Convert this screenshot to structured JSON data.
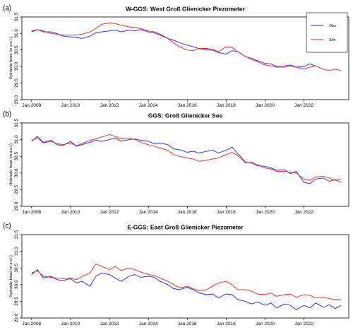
{
  "chart_data": [
    {
      "type": "line",
      "panel_label": "(a)",
      "title": "W-GGS: West Groß Glienicker Piezometer",
      "ylabel": "Hydraulic head (m a.s.l.)",
      "xlabel": "",
      "x_ticks": [
        "Jan 2008",
        "Jan 2010",
        "Jan 2012",
        "Jan 2014",
        "Jan 2016",
        "Jan 2018",
        "Jan 2020",
        "Jan 2022"
      ],
      "xlim": [
        2007.5,
        2024.3
      ],
      "y_ticks": [
        "29.0",
        "29.5",
        "30.0",
        "30.5",
        "31.0",
        "31.5"
      ],
      "ylim": [
        29.0,
        31.5
      ],
      "legend": {
        "placement": "top-right",
        "entries": [
          "Obs",
          "Sim"
        ]
      },
      "series": [
        {
          "name": "Obs",
          "color": "#1f1fe6",
          "x": [
            2008.0,
            2008.3,
            2008.6,
            2009.0,
            2009.3,
            2009.6,
            2010.0,
            2010.3,
            2010.6,
            2011.0,
            2011.3,
            2011.6,
            2012.0,
            2012.3,
            2012.6,
            2013.0,
            2013.3,
            2013.6,
            2014.0,
            2014.3,
            2014.6,
            2015.0,
            2015.3,
            2015.6,
            2016.0,
            2016.3,
            2016.6,
            2017.0,
            2017.3,
            2017.6,
            2018.0,
            2018.3,
            2018.6,
            2019.0,
            2019.3,
            2019.6,
            2020.0,
            2020.3,
            2020.6,
            2021.0,
            2021.3,
            2021.6,
            2022.0,
            2022.3,
            2022.6
          ],
          "y": [
            31.05,
            31.12,
            31.05,
            31.05,
            31.0,
            30.92,
            30.9,
            30.88,
            30.85,
            30.92,
            31.02,
            31.05,
            31.08,
            31.1,
            31.05,
            31.1,
            31.08,
            31.12,
            31.05,
            31.02,
            30.95,
            30.85,
            30.8,
            30.72,
            30.65,
            30.6,
            30.55,
            30.5,
            30.5,
            30.42,
            30.38,
            30.48,
            30.45,
            30.3,
            30.25,
            30.18,
            30.1,
            30.08,
            30.0,
            30.02,
            30.05,
            29.98,
            30.0,
            30.08,
            30.02
          ]
        },
        {
          "name": "Sim",
          "color": "#e61f1f",
          "x": [
            2008.0,
            2008.3,
            2008.6,
            2009.0,
            2009.3,
            2009.6,
            2010.0,
            2010.3,
            2010.6,
            2011.0,
            2011.3,
            2011.6,
            2012.0,
            2012.3,
            2012.6,
            2013.0,
            2013.3,
            2013.6,
            2014.0,
            2014.3,
            2014.6,
            2015.0,
            2015.3,
            2015.6,
            2016.0,
            2016.3,
            2016.6,
            2017.0,
            2017.3,
            2017.6,
            2018.0,
            2018.3,
            2018.6,
            2019.0,
            2019.3,
            2019.6,
            2020.0,
            2020.3,
            2020.6,
            2021.0,
            2021.3,
            2021.6,
            2022.0,
            2022.3,
            2022.6,
            2023.0,
            2023.3,
            2023.6,
            2023.9
          ],
          "y": [
            31.08,
            31.12,
            31.08,
            31.0,
            30.98,
            30.95,
            30.95,
            30.95,
            30.98,
            31.05,
            31.15,
            31.28,
            31.32,
            31.3,
            31.25,
            31.2,
            31.18,
            31.15,
            31.08,
            31.05,
            30.98,
            30.85,
            30.72,
            30.6,
            30.5,
            30.48,
            30.55,
            30.55,
            30.52,
            30.45,
            30.6,
            30.58,
            30.45,
            30.3,
            30.22,
            30.15,
            30.05,
            30.02,
            29.98,
            29.98,
            30.02,
            29.98,
            29.92,
            29.98,
            30.02,
            29.92,
            29.88,
            29.92,
            29.88
          ]
        }
      ]
    },
    {
      "type": "line",
      "panel_label": "(b)",
      "title": "GGS: Groß Glienicker See",
      "ylabel": "Hydraulic head (m a.s.l.)",
      "xlabel": "",
      "x_ticks": [
        "Jan 2008",
        "Jan 2010",
        "Jan 2012",
        "Jan 2014",
        "Jan 2016",
        "Jan 2018",
        "Jan 2020",
        "Jan 2022"
      ],
      "xlim": [
        2007.5,
        2024.3
      ],
      "y_ticks": [
        "29.0",
        "29.5",
        "30.0",
        "30.5",
        "31.0",
        "31.5"
      ],
      "ylim": [
        29.0,
        31.5
      ],
      "series": [
        {
          "name": "Obs",
          "color": "#1f1fe6",
          "x": [
            2008.0,
            2008.3,
            2008.6,
            2009.0,
            2009.3,
            2009.6,
            2010.0,
            2010.3,
            2010.6,
            2011.0,
            2011.3,
            2011.6,
            2012.0,
            2012.3,
            2012.6,
            2013.0,
            2013.3,
            2013.6,
            2014.0,
            2014.3,
            2014.6,
            2015.0,
            2015.3,
            2015.6,
            2016.0,
            2016.3,
            2016.6,
            2017.0,
            2017.3,
            2017.6,
            2018.0,
            2018.3,
            2018.6,
            2019.0,
            2019.3,
            2019.6,
            2020.0,
            2020.3,
            2020.6,
            2021.0,
            2021.3,
            2021.6,
            2022.0,
            2022.3,
            2022.6,
            2023.0,
            2023.3,
            2023.6,
            2023.9
          ],
          "y": [
            30.95,
            31.1,
            30.92,
            30.98,
            30.85,
            30.82,
            30.95,
            30.8,
            30.85,
            30.92,
            30.98,
            30.95,
            31.0,
            31.05,
            30.95,
            31.0,
            31.02,
            30.98,
            30.95,
            30.88,
            30.9,
            30.85,
            30.72,
            30.7,
            30.62,
            30.65,
            30.6,
            30.65,
            30.68,
            30.6,
            30.68,
            30.78,
            30.58,
            30.32,
            30.3,
            30.22,
            30.2,
            30.15,
            30.08,
            30.1,
            29.98,
            30.05,
            29.72,
            29.68,
            29.82,
            29.85,
            29.75,
            29.8,
            29.72
          ]
        },
        {
          "name": "Sim",
          "color": "#e61f1f",
          "x": [
            2008.0,
            2008.3,
            2008.6,
            2009.0,
            2009.3,
            2009.6,
            2010.0,
            2010.3,
            2010.6,
            2011.0,
            2011.3,
            2011.6,
            2012.0,
            2012.3,
            2012.6,
            2013.0,
            2013.3,
            2013.6,
            2014.0,
            2014.3,
            2014.6,
            2015.0,
            2015.3,
            2015.6,
            2016.0,
            2016.3,
            2016.6,
            2017.0,
            2017.3,
            2017.6,
            2018.0,
            2018.3,
            2018.6,
            2019.0,
            2019.3,
            2019.6,
            2020.0,
            2020.3,
            2020.6,
            2021.0,
            2021.3,
            2021.6,
            2022.0,
            2022.3,
            2022.6,
            2023.0,
            2023.3,
            2023.6,
            2023.9
          ],
          "y": [
            30.98,
            31.05,
            30.9,
            30.95,
            30.88,
            30.85,
            30.9,
            30.82,
            30.88,
            30.98,
            31.02,
            31.08,
            31.15,
            31.1,
            31.02,
            31.05,
            31.0,
            30.92,
            30.85,
            30.8,
            30.75,
            30.68,
            30.55,
            30.5,
            30.45,
            30.42,
            30.35,
            30.38,
            30.42,
            30.45,
            30.55,
            30.62,
            30.52,
            30.3,
            30.32,
            30.25,
            30.15,
            30.12,
            30.05,
            30.05,
            30.02,
            30.0,
            29.82,
            29.78,
            29.88,
            29.9,
            29.85,
            29.78,
            29.82
          ]
        }
      ]
    },
    {
      "type": "line",
      "panel_label": "(c)",
      "title": "E-GGS: East Groß Glienicker Piezometer",
      "ylabel": "Hydraulic head (m a.s.l.)",
      "xlabel": "",
      "x_ticks": [
        "Jan 2008",
        "Jan 2010",
        "Jan 2012",
        "Jan 2014",
        "Jan 2016",
        "Jan 2018",
        "Jan 2020",
        "Jan 2022"
      ],
      "xlim": [
        2007.5,
        2024.3
      ],
      "y_ticks": [
        "29.0",
        "29.5",
        "30.0",
        "30.5",
        "31.0",
        "31.5"
      ],
      "ylim": [
        29.0,
        31.5
      ],
      "series": [
        {
          "name": "Obs",
          "color": "#1f1fe6",
          "x": [
            2008.0,
            2008.3,
            2008.6,
            2009.0,
            2009.3,
            2009.6,
            2010.0,
            2010.3,
            2010.6,
            2011.0,
            2011.3,
            2011.6,
            2012.0,
            2012.3,
            2012.6,
            2013.0,
            2013.3,
            2013.6,
            2014.0,
            2014.3,
            2014.6,
            2015.0,
            2015.3,
            2015.6,
            2016.0,
            2016.3,
            2016.6,
            2017.0,
            2017.3,
            2017.6,
            2018.0,
            2018.3,
            2018.6,
            2019.0,
            2019.3,
            2019.6,
            2020.0,
            2020.3,
            2020.6,
            2021.0,
            2021.3,
            2021.6,
            2022.0,
            2022.3,
            2022.6,
            2023.0,
            2023.3,
            2023.6,
            2023.9
          ],
          "y": [
            30.3,
            30.45,
            30.2,
            30.25,
            30.15,
            30.12,
            30.18,
            30.05,
            30.1,
            29.95,
            30.25,
            30.35,
            30.3,
            30.2,
            30.1,
            30.25,
            30.3,
            30.22,
            30.25,
            30.22,
            30.1,
            30.0,
            29.88,
            29.85,
            29.92,
            29.85,
            29.75,
            29.7,
            29.72,
            29.6,
            29.72,
            29.7,
            29.55,
            29.5,
            29.42,
            29.48,
            29.38,
            29.45,
            29.3,
            29.42,
            29.38,
            29.25,
            29.38,
            29.3,
            29.45,
            29.32,
            29.4,
            29.28,
            29.38
          ]
        },
        {
          "name": "Sim",
          "color": "#e61f1f",
          "x": [
            2008.0,
            2008.3,
            2008.6,
            2009.0,
            2009.3,
            2009.6,
            2010.0,
            2010.3,
            2010.6,
            2011.0,
            2011.3,
            2011.6,
            2012.0,
            2012.3,
            2012.6,
            2013.0,
            2013.3,
            2013.6,
            2014.0,
            2014.3,
            2014.6,
            2015.0,
            2015.3,
            2015.6,
            2016.0,
            2016.3,
            2016.6,
            2017.0,
            2017.3,
            2017.6,
            2018.0,
            2018.3,
            2018.6,
            2019.0,
            2019.3,
            2019.6,
            2020.0,
            2020.3,
            2020.6,
            2021.0,
            2021.3,
            2021.6,
            2022.0,
            2022.3,
            2022.6,
            2023.0,
            2023.3,
            2023.6,
            2023.9
          ],
          "y": [
            30.35,
            30.42,
            30.25,
            30.22,
            30.2,
            30.18,
            30.2,
            30.15,
            30.25,
            30.35,
            30.62,
            30.55,
            30.45,
            30.55,
            30.42,
            30.5,
            30.45,
            30.38,
            30.3,
            30.28,
            30.2,
            30.1,
            30.0,
            29.9,
            29.95,
            29.88,
            29.82,
            29.85,
            29.95,
            30.05,
            30.1,
            30.0,
            29.85,
            29.85,
            29.8,
            29.72,
            29.7,
            29.75,
            29.65,
            29.7,
            29.72,
            29.62,
            29.7,
            29.68,
            29.6,
            29.62,
            29.58,
            29.55,
            29.55
          ]
        }
      ]
    }
  ]
}
